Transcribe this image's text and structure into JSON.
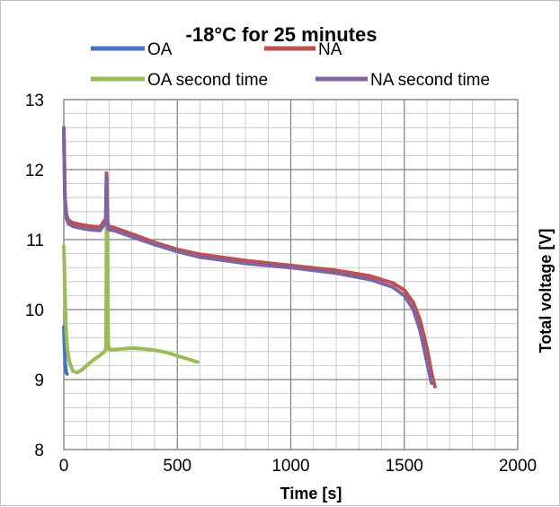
{
  "chart_data": {
    "type": "line",
    "title": "-18°C for 25 minutes",
    "xlabel": "Time [s]",
    "ylabel": "Total voltage [V]",
    "xlim": [
      0,
      2000
    ],
    "ylim": [
      8,
      13
    ],
    "x_major_ticks": [
      0,
      500,
      1000,
      1500,
      2000
    ],
    "x_tick_labels": [
      "0",
      "500",
      "1000",
      "1500",
      "2000"
    ],
    "y_major_ticks": [
      8,
      9,
      10,
      11,
      12,
      13
    ],
    "y_tick_labels": [
      "8",
      "9",
      "10",
      "11",
      "12",
      "13"
    ],
    "grid": "major and minor",
    "legend_position": "top",
    "series": [
      {
        "name": "OA",
        "color": "#4472C4",
        "x": [
          0,
          2,
          4,
          6,
          8,
          10,
          12,
          14
        ],
        "y": [
          9.75,
          9.55,
          9.38,
          9.25,
          9.17,
          9.12,
          9.09,
          9.08
        ]
      },
      {
        "name": "NA",
        "color": "#C0504D",
        "x": [
          0,
          5,
          12,
          20,
          40,
          80,
          120,
          160,
          185,
          188,
          190,
          192,
          196,
          200,
          230,
          300,
          400,
          500,
          600,
          800,
          1000,
          1200,
          1350,
          1450,
          1500,
          1540,
          1570,
          1600,
          1620,
          1635
        ],
        "y": [
          12.5,
          11.6,
          11.35,
          11.28,
          11.24,
          11.21,
          11.19,
          11.18,
          11.3,
          11.95,
          11.6,
          11.3,
          11.2,
          11.19,
          11.16,
          11.08,
          10.96,
          10.86,
          10.79,
          10.7,
          10.63,
          10.56,
          10.48,
          10.38,
          10.28,
          10.1,
          9.85,
          9.45,
          9.1,
          8.9
        ]
      },
      {
        "name": "OA second time",
        "color": "#9BBB59",
        "x": [
          0,
          3,
          6,
          10,
          15,
          25,
          40,
          60,
          80,
          100,
          130,
          160,
          180,
          186,
          188,
          190,
          192,
          194,
          196,
          200,
          220,
          260,
          300,
          350,
          400,
          450,
          500,
          550,
          590
        ],
        "y": [
          10.9,
          10.55,
          10.1,
          9.7,
          9.45,
          9.25,
          9.12,
          9.1,
          9.14,
          9.2,
          9.28,
          9.35,
          9.4,
          9.45,
          11.1,
          11.9,
          10.8,
          9.9,
          9.5,
          9.43,
          9.43,
          9.44,
          9.45,
          9.44,
          9.42,
          9.39,
          9.34,
          9.29,
          9.25
        ]
      },
      {
        "name": "NA second time",
        "color": "#8064A2",
        "x": [
          0,
          5,
          12,
          20,
          40,
          80,
          120,
          160,
          185,
          188,
          190,
          192,
          196,
          200,
          230,
          300,
          400,
          500,
          600,
          800,
          1000,
          1200,
          1350,
          1450,
          1500,
          1540,
          1570,
          1590,
          1610,
          1620
        ],
        "y": [
          12.6,
          11.55,
          11.3,
          11.23,
          11.19,
          11.16,
          11.14,
          11.13,
          11.25,
          11.9,
          11.55,
          11.25,
          11.15,
          11.14,
          11.12,
          11.04,
          10.93,
          10.83,
          10.75,
          10.66,
          10.6,
          10.52,
          10.43,
          10.32,
          10.2,
          10.0,
          9.7,
          9.4,
          9.1,
          8.95
        ]
      }
    ]
  }
}
